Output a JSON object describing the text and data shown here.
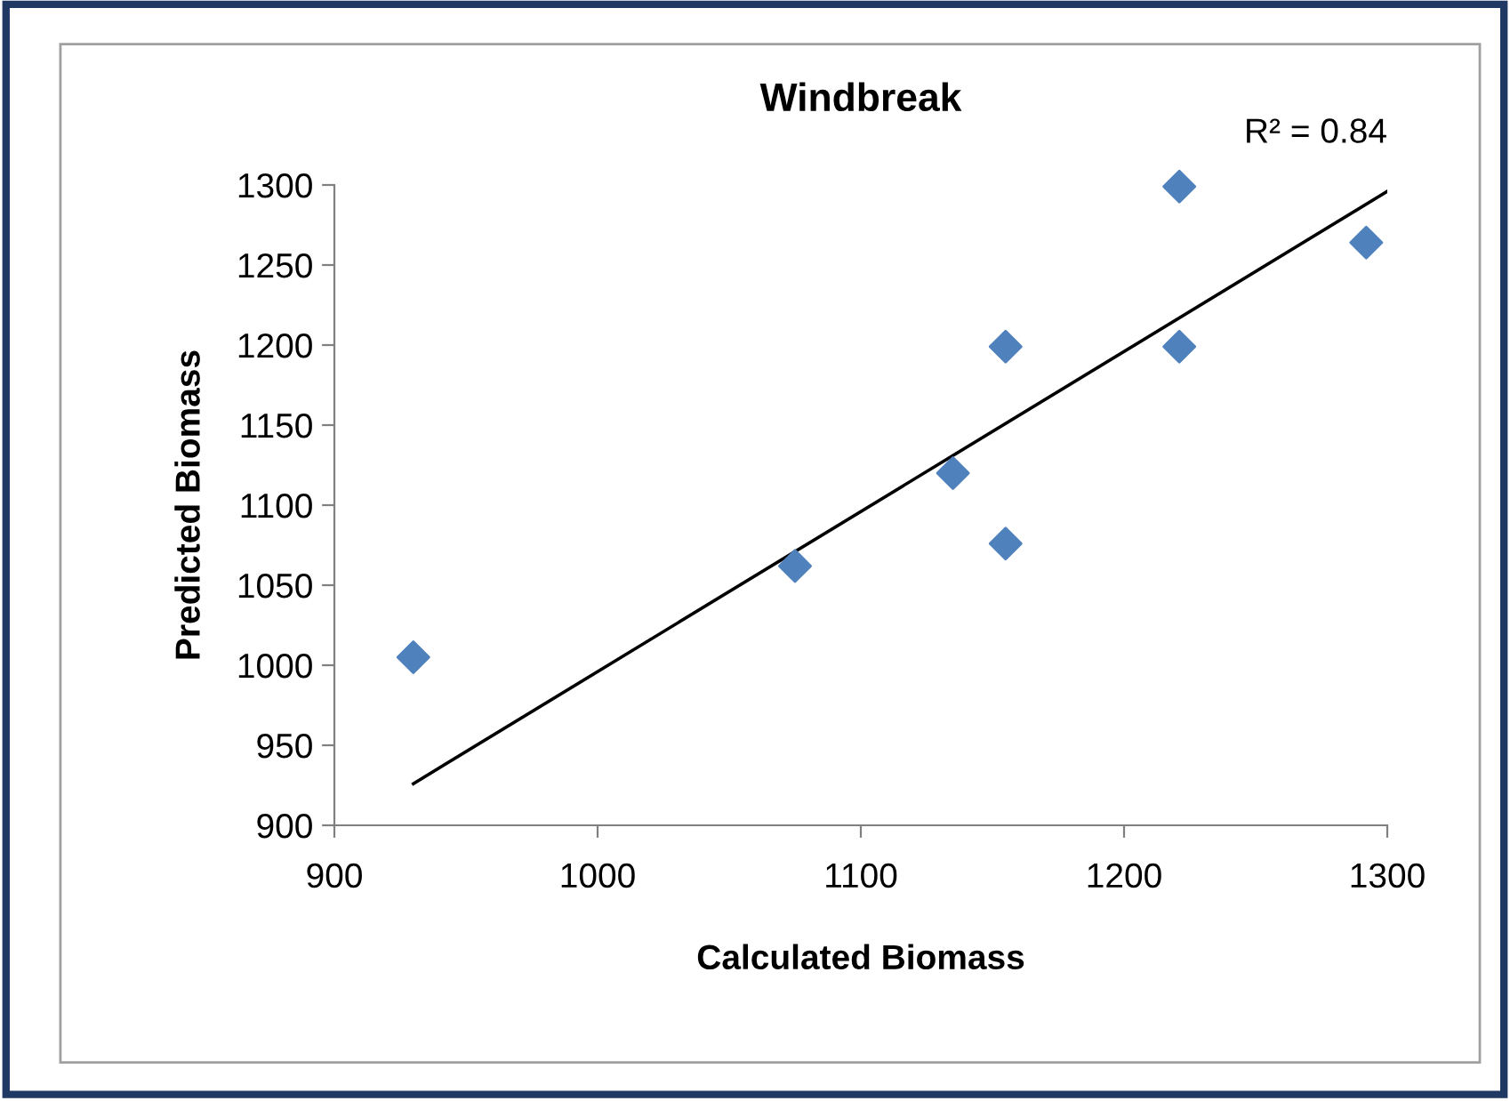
{
  "chart_data": {
    "type": "scatter",
    "title": "Windbreak",
    "xlabel": "Calculated Biomass",
    "ylabel": "Predicted Biomass",
    "annotations": [
      "R² = 0.84"
    ],
    "xlim": [
      900,
      1300
    ],
    "xticks": [
      900,
      1000,
      1100,
      1200,
      1300
    ],
    "ylim": [
      900,
      1300
    ],
    "yticks": [
      900,
      950,
      1000,
      1050,
      1100,
      1150,
      1200,
      1250,
      1300
    ],
    "grid": false,
    "legend": false,
    "marker": "diamond",
    "series": [
      {
        "color": "#4f81bd",
        "x": [
          930,
          1075,
          1135,
          1155,
          1155,
          1221,
          1221,
          1292
        ],
        "values": [
          1005,
          1062,
          1120,
          1076,
          1199,
          1299,
          1199,
          1264
        ]
      },
      {
        "type": "line",
        "color": "#000000",
        "line_style": "solid",
        "marker": "none",
        "x": [
          930,
          1300
        ],
        "values": [
          926,
          1296
        ]
      }
    ]
  }
}
